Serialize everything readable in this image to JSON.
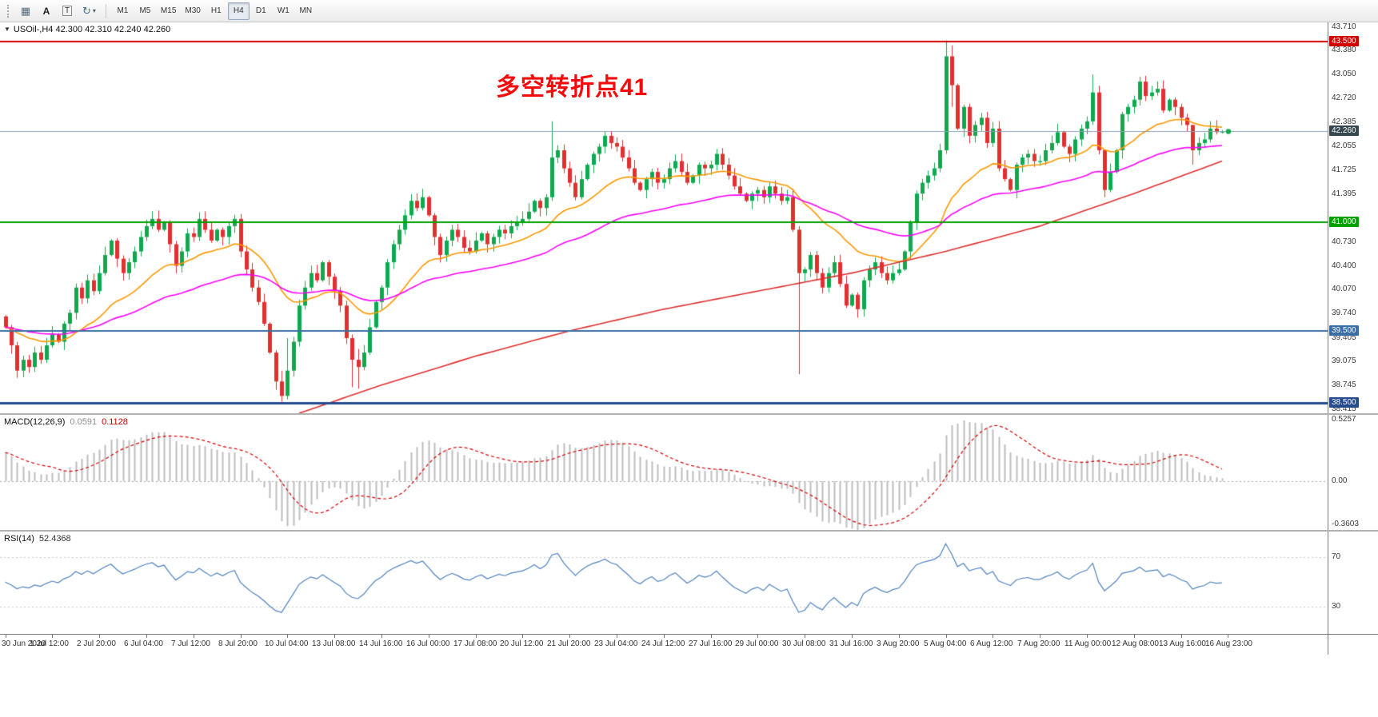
{
  "toolbar": {
    "icons": [
      {
        "name": "chart-grid",
        "glyph": "▦"
      },
      {
        "name": "letter-a",
        "glyph": "A"
      },
      {
        "name": "text-tool",
        "glyph": "T"
      },
      {
        "name": "cycle",
        "glyph": "↻"
      },
      {
        "name": "caret-down",
        "glyph": "▾"
      }
    ],
    "timeframes": [
      "M1",
      "M5",
      "M15",
      "M30",
      "H1",
      "H4",
      "D1",
      "W1",
      "MN"
    ],
    "active_timeframe": "H4"
  },
  "main_panel": {
    "collapse_glyph": "▼",
    "symbol_line": "USOil-,H4 42.300 42.310 42.240 42.260",
    "annotation": {
      "text": "多空转折点41",
      "color": "#f40b0b"
    },
    "current_price_label": "42.260",
    "current_price_badge_color": "#37474f",
    "price_ticks": [
      {
        "label": "43.710",
        "price": 43.71
      },
      {
        "label": "43.380",
        "price": 43.38
      },
      {
        "label": "43.050",
        "price": 43.05
      },
      {
        "label": "42.720",
        "price": 42.72
      },
      {
        "label": "42.385",
        "price": 42.385
      },
      {
        "label": "42.055",
        "price": 42.055
      },
      {
        "label": "41.725",
        "price": 41.725
      },
      {
        "label": "41.395",
        "price": 41.395
      },
      {
        "label": "40.730",
        "price": 40.73
      },
      {
        "label": "40.400",
        "price": 40.4
      },
      {
        "label": "40.070",
        "price": 40.07
      },
      {
        "label": "39.740",
        "price": 39.74
      },
      {
        "label": "39.405",
        "price": 39.405
      },
      {
        "label": "39.075",
        "price": 39.075
      },
      {
        "label": "38.745",
        "price": 38.745
      },
      {
        "label": "38.415",
        "price": 38.415
      }
    ]
  },
  "macd_panel": {
    "title": "MACD(12,26,9)",
    "value_main": "0.0591",
    "value_signal": "0.1128",
    "axis_max": "0.5257",
    "axis_zero": "0.00",
    "axis_min": "-0.3603"
  },
  "rsi_panel": {
    "title": "RSI(14)",
    "value": "52.4368",
    "axis_levels": [
      "70",
      "30"
    ]
  },
  "time_axis": {
    "bars_per_label": 8,
    "labels": [
      "30 Jun 2020",
      "1 Jul 12:00",
      "2 Jul 20:00",
      "6 Jul 04:00",
      "7 Jul 12:00",
      "8 Jul 20:00",
      "10 Jul 04:00",
      "13 Jul 08:00",
      "14 Jul 16:00",
      "16 Jul 00:00",
      "17 Jul 08:00",
      "20 Jul 12:00",
      "21 Jul 20:00",
      "23 Jul 04:00",
      "24 Jul 12:00",
      "27 Jul 16:00",
      "29 Jul 00:00",
      "30 Jul 08:00",
      "31 Jul 16:00",
      "3 Aug 20:00",
      "5 Aug 04:00",
      "6 Aug 12:00",
      "7 Aug 20:00",
      "11 Aug 00:00",
      "12 Aug 08:00",
      "13 Aug 16:00",
      "16 Aug 23:00"
    ]
  },
  "chart_data": {
    "type": "candlestick",
    "symbol": "USOil-",
    "timeframe": "H4",
    "bar_count": 208,
    "price_range": [
      38.36,
      43.77
    ],
    "first_open": 39.7,
    "up_color": "#10a84e",
    "down_color": "#e03030",
    "closes": [
      39.55,
      39.3,
      38.95,
      39.1,
      39.0,
      39.2,
      39.1,
      39.3,
      39.45,
      39.35,
      39.6,
      39.75,
      40.1,
      39.95,
      40.2,
      40.05,
      40.3,
      40.55,
      40.75,
      40.5,
      40.3,
      40.45,
      40.6,
      40.8,
      40.95,
      41.05,
      40.9,
      41.0,
      40.7,
      40.4,
      40.6,
      40.85,
      40.8,
      41.05,
      40.9,
      40.75,
      40.9,
      40.8,
      40.95,
      41.05,
      40.6,
      40.35,
      40.1,
      39.9,
      39.6,
      39.2,
      38.8,
      38.6,
      38.95,
      39.35,
      39.85,
      40.1,
      40.3,
      40.2,
      40.45,
      40.25,
      40.05,
      39.85,
      39.4,
      39.1,
      39.0,
      39.2,
      39.55,
      39.9,
      40.1,
      40.45,
      40.7,
      40.9,
      41.1,
      41.3,
      41.2,
      41.35,
      41.1,
      40.8,
      40.55,
      40.75,
      40.9,
      40.8,
      40.65,
      40.6,
      40.75,
      40.85,
      40.7,
      40.8,
      40.9,
      40.85,
      40.95,
      41.0,
      41.05,
      41.15,
      41.3,
      41.2,
      41.35,
      41.9,
      42.0,
      41.75,
      41.55,
      41.35,
      41.6,
      41.8,
      41.95,
      42.05,
      42.2,
      42.1,
      42.05,
      41.9,
      41.75,
      41.55,
      41.45,
      41.6,
      41.7,
      41.55,
      41.6,
      41.75,
      41.85,
      41.7,
      41.55,
      41.65,
      41.8,
      41.75,
      41.8,
      41.95,
      41.8,
      41.65,
      41.5,
      41.4,
      41.3,
      41.4,
      41.45,
      41.35,
      41.5,
      41.4,
      41.3,
      41.35,
      40.9,
      40.3,
      40.35,
      40.55,
      40.3,
      40.1,
      40.3,
      40.45,
      40.15,
      39.85,
      40.0,
      39.8,
      40.2,
      40.35,
      40.45,
      40.3,
      40.2,
      40.3,
      40.35,
      40.6,
      41.0,
      41.4,
      41.55,
      41.65,
      41.75,
      42.0,
      43.3,
      42.9,
      42.3,
      42.6,
      42.2,
      42.35,
      42.45,
      42.1,
      42.3,
      41.75,
      41.6,
      41.45,
      41.8,
      41.9,
      41.95,
      41.85,
      41.85,
      42.0,
      42.1,
      42.25,
      42.05,
      41.95,
      42.15,
      42.3,
      42.4,
      42.8,
      42.0,
      41.45,
      41.7,
      42.0,
      42.5,
      42.6,
      42.7,
      42.95,
      42.75,
      42.8,
      42.85,
      42.55,
      42.7,
      42.6,
      42.45,
      42.35,
      42.0,
      42.1,
      42.15,
      42.3,
      42.25,
      42.26
    ],
    "wick_overrides": {
      "2": [
        39.35,
        38.85
      ],
      "47": [
        38.95,
        38.52
      ],
      "48": [
        39.4,
        38.55
      ],
      "59": [
        39.45,
        38.72
      ],
      "60": [
        39.25,
        38.7
      ],
      "93": [
        42.4,
        41.3
      ],
      "135": [
        40.95,
        38.9
      ],
      "160": [
        43.52,
        41.95
      ],
      "161": [
        43.45,
        42.6
      ],
      "185": [
        43.05,
        42.35
      ],
      "187": [
        42.0,
        41.35
      ],
      "202": [
        42.35,
        41.8
      ]
    },
    "current_price": 42.26,
    "levels": [
      {
        "price": 43.5,
        "color": "#d40000",
        "width": 2,
        "label": "43.500"
      },
      {
        "price": 42.26,
        "color": "#8ba0b5",
        "width": 1,
        "label": null
      },
      {
        "price": 41.0,
        "color": "#00a000",
        "width": 2,
        "label": "41.000"
      },
      {
        "price": 39.5,
        "color": "#3a6ea5",
        "width": 2,
        "label": "39.500"
      },
      {
        "price": 38.5,
        "color": "#274b8f",
        "width": 3,
        "label": "38.500"
      }
    ],
    "moving_averages": [
      {
        "name": "ma-fast",
        "color": "#ff9800",
        "type": "ema",
        "period": 21
      },
      {
        "name": "ma-mid",
        "color": "#ff00ff",
        "type": "ema",
        "period": 55
      },
      {
        "name": "ma-slow",
        "color": "#e03030",
        "type": "points",
        "points": [
          [
            50,
            38.36
          ],
          [
            64,
            38.75
          ],
          [
            80,
            39.15
          ],
          [
            96,
            39.5
          ],
          [
            112,
            39.8
          ],
          [
            128,
            40.05
          ],
          [
            144,
            40.3
          ],
          [
            160,
            40.6
          ],
          [
            176,
            40.95
          ],
          [
            192,
            41.4
          ],
          [
            207,
            41.85
          ]
        ]
      }
    ],
    "macd": {
      "fast": 12,
      "slow": 26,
      "signal": 9,
      "range": [
        -0.408,
        0.553
      ],
      "hist_color": "#bdbdbd",
      "signal_color": "#d40000"
    },
    "rsi": {
      "period": 14,
      "range": [
        8,
        91
      ],
      "color": "#4f81bd",
      "levels": [
        70,
        30
      ]
    }
  }
}
